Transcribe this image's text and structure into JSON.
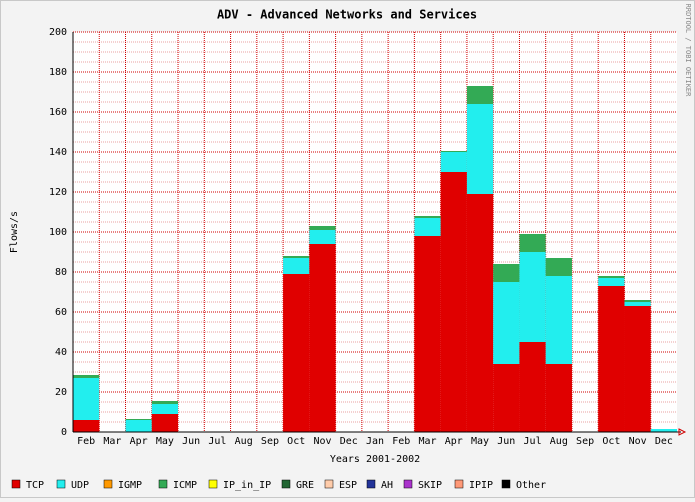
{
  "chart_data": {
    "type": "stacked_bar",
    "title": "ADV - Advanced Networks and Services",
    "y_label": "Flows/s",
    "x_label": "Years 2001-2002",
    "watermark": "RRDTOOL / TOBI OETIKER",
    "categories": [
      "Feb",
      "Mar",
      "Apr",
      "May",
      "Jun",
      "Jul",
      "Aug",
      "Sep",
      "Oct",
      "Nov",
      "Dec",
      "Jan",
      "Feb",
      "Mar",
      "Apr",
      "May",
      "Jun",
      "Jul",
      "Aug",
      "Sep",
      "Oct",
      "Nov",
      "Dec"
    ],
    "ylim": [
      0,
      200
    ],
    "yticks": [
      0,
      20,
      40,
      60,
      80,
      100,
      120,
      140,
      160,
      180,
      200
    ],
    "grid": true,
    "series": [
      {
        "name": "TCP",
        "color": "#e00000",
        "values": [
          6,
          0,
          0,
          9,
          0,
          0,
          0,
          0,
          79,
          94,
          0,
          0,
          0,
          98,
          130,
          119,
          34,
          45,
          34,
          0,
          73,
          63,
          0
        ]
      },
      {
        "name": "UDP",
        "color": "#22eeee",
        "values": [
          21,
          0,
          6,
          5,
          0,
          0,
          0,
          0,
          8,
          7,
          0,
          0,
          0,
          9,
          10,
          45,
          41,
          45,
          44,
          0,
          4,
          2,
          1.5
        ]
      },
      {
        "name": "IGMP",
        "color": "#ff9900",
        "values": [
          0,
          0,
          0,
          0,
          0,
          0,
          0,
          0,
          0,
          0,
          0,
          0,
          0,
          0,
          0,
          0,
          0,
          0,
          0,
          0,
          0,
          0,
          0
        ]
      },
      {
        "name": "ICMP",
        "color": "#33aa55",
        "values": [
          1.5,
          0,
          0.5,
          1.5,
          0,
          0,
          0,
          0,
          1,
          2,
          0,
          0,
          0,
          1,
          0.5,
          9,
          9,
          9,
          9,
          0,
          1,
          1,
          0
        ]
      },
      {
        "name": "IP_in_IP",
        "color": "#ffff00",
        "values": [
          0,
          0,
          0,
          0,
          0,
          0,
          0,
          0,
          0,
          0,
          0,
          0,
          0,
          0,
          0,
          0,
          0,
          0,
          0,
          0,
          0,
          0,
          0
        ]
      },
      {
        "name": "GRE",
        "color": "#226633",
        "values": [
          0,
          0,
          0,
          0,
          0,
          0,
          0,
          0,
          0,
          0,
          0,
          0,
          0,
          0,
          0,
          0,
          0,
          0,
          0,
          0,
          0,
          0,
          0
        ]
      },
      {
        "name": "ESP",
        "color": "#ffccaa",
        "values": [
          0,
          0,
          0,
          0,
          0,
          0,
          0,
          0,
          0,
          0,
          0,
          0,
          0,
          0,
          0,
          0,
          0,
          0,
          0,
          0,
          0,
          0,
          0
        ]
      },
      {
        "name": "AH",
        "color": "#223399",
        "values": [
          0,
          0,
          0,
          0,
          0,
          0,
          0,
          0,
          0,
          0,
          0,
          0,
          0,
          0,
          0,
          0,
          0,
          0,
          0,
          0,
          0,
          0,
          0
        ]
      },
      {
        "name": "SKIP",
        "color": "#aa33cc",
        "values": [
          0,
          0,
          0,
          0,
          0,
          0,
          0,
          0,
          0,
          0,
          0,
          0,
          0,
          0,
          0,
          0,
          0,
          0,
          0,
          0,
          0,
          0,
          0
        ]
      },
      {
        "name": "IPIP",
        "color": "#ff9977",
        "values": [
          0,
          0,
          0,
          0,
          0,
          0,
          0,
          0,
          0,
          0,
          0,
          0,
          0,
          0,
          0,
          0,
          0,
          0,
          0,
          0,
          0,
          0,
          0
        ]
      },
      {
        "name": "Other",
        "color": "#000000",
        "values": [
          0,
          0,
          0,
          0,
          0,
          0,
          0,
          0,
          0,
          0,
          0,
          0,
          0,
          0,
          0,
          0,
          0,
          0,
          0,
          0,
          0,
          0,
          0
        ]
      }
    ]
  }
}
